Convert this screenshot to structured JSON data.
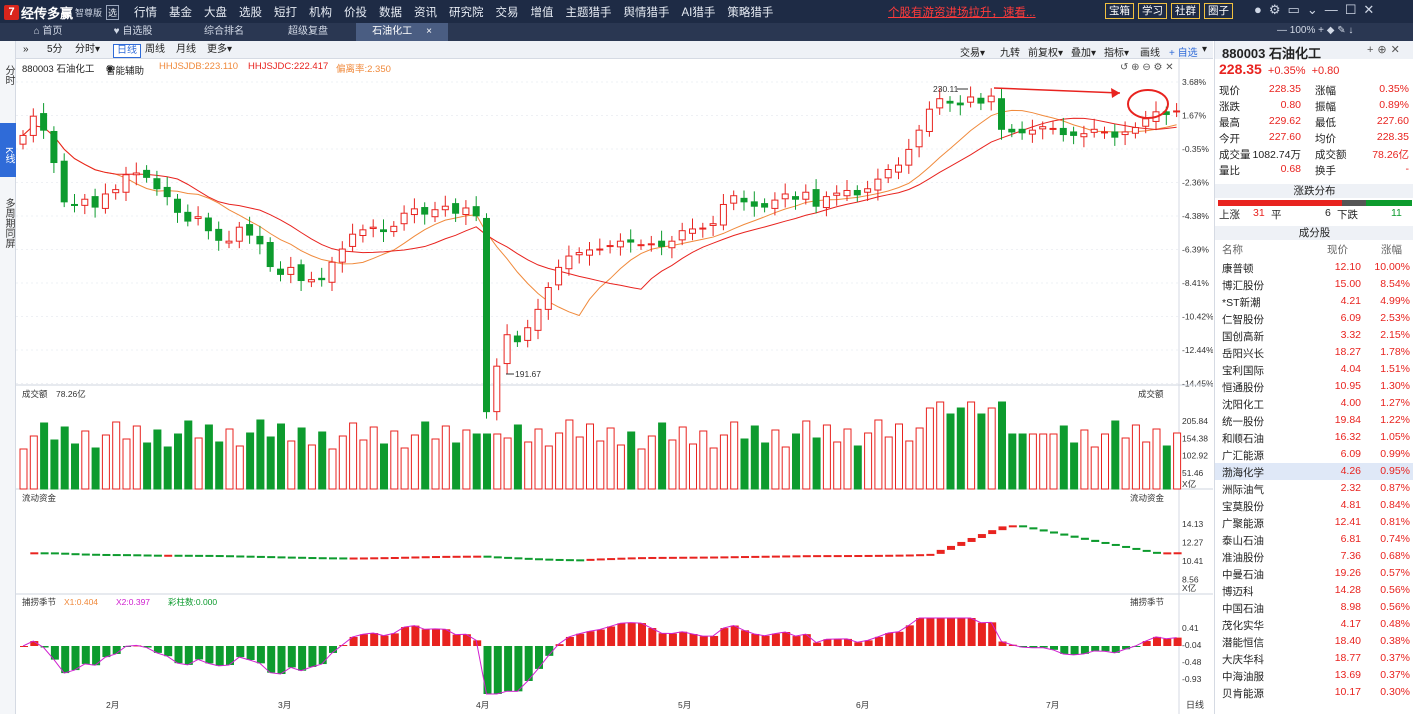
{
  "app": {
    "logo_glyph": "7",
    "name": "经传多赢",
    "edition": "智尊版",
    "badge": "选"
  },
  "menu": [
    "行情",
    "基金",
    "大盘",
    "选股",
    "短打",
    "机构",
    "价投",
    "数据",
    "资讯",
    "研究院",
    "交易",
    "增值",
    "主题猎手",
    "舆情猎手",
    "AI猎手",
    "策略猎手"
  ],
  "marquee": "个股有游资进场拉升，速看...",
  "top_buttons": [
    "宝箱",
    "学习",
    "社群",
    "圈子"
  ],
  "window_icons": [
    "user-icon",
    "gear-icon",
    "window-icon",
    "chevron-down-icon",
    "minimize-icon",
    "maximize-icon",
    "close-icon"
  ],
  "tabs": [
    {
      "label": "首页",
      "icon": "home"
    },
    {
      "label": "自选股",
      "icon": "heart"
    },
    {
      "label": "综合排名"
    },
    {
      "label": "超级复盘"
    },
    {
      "label": "石油化工",
      "active": true,
      "close": "×"
    }
  ],
  "tabbar_right": "— 100% + ◆ ✎ ↓",
  "left_rail": [
    "分时",
    "K线",
    "多周期同屏"
  ],
  "chart_toolbar": {
    "nav": "»",
    "periods": [
      "5分",
      "分时▾",
      "日线",
      "周线",
      "月线",
      "更多▾"
    ],
    "active": "日线",
    "right": [
      "交易▾",
      "九转",
      "前复权▾",
      "叠加▾",
      "指标▾",
      "画线"
    ],
    "add": "+ 自选",
    "more": "▾"
  },
  "info": {
    "code": "880003 石油化工",
    "assist": "智能辅助",
    "hhjsdb": "HHJSJDB:223.110",
    "hhjsdc": "HHJSJDC:222.417",
    "disp": "偏离率:2.350"
  },
  "panes": {
    "vol_title": "成交额",
    "vol_value": "78.26亿",
    "vol_right": "成交额",
    "fund_title": "流动资金",
    "fund_right": "流动资金",
    "ind_title": "捕捞季节",
    "ind_x1": "X1:0.404",
    "ind_x2": "X2:0.397",
    "ind_bar": "彩柱数:0.000",
    "ind_right": "捕捞季节",
    "unit": "X亿"
  },
  "price_axis": [
    "3.68%",
    "1.67%",
    "-0.35%",
    "-2.36%",
    "-4.38%",
    "-6.39%",
    "-8.41%",
    "-10.42%",
    "-12.44%",
    "-14.45%"
  ],
  "vol_axis": [
    "205.84",
    "154.38",
    "102.92",
    "51.46"
  ],
  "fund_axis": [
    "14.13",
    "12.27",
    "10.41",
    "8.56"
  ],
  "ind_axis": [
    "0.41",
    "-0.04",
    "-0.48",
    "-0.93"
  ],
  "months": [
    "2月",
    "3月",
    "4月",
    "5月",
    "6月",
    "7月"
  ],
  "period_label": "日线",
  "annot": {
    "high": "230.11",
    "low": "191.67"
  },
  "quote": {
    "code": "880003",
    "name": "石油化工",
    "price": "228.35",
    "chg_pct": "+0.35%",
    "chg": "+0.80",
    "rows": [
      [
        "现价",
        "228.35",
        "涨幅",
        "0.35%"
      ],
      [
        "涨跌",
        "0.80",
        "振幅",
        "0.89%"
      ],
      [
        "最高",
        "229.62",
        "最低",
        "227.60"
      ],
      [
        "今开",
        "227.60",
        "均价",
        "228.35"
      ],
      [
        "成交量",
        "1082.74万",
        "成交额",
        "78.26亿"
      ],
      [
        "量比",
        "0.68",
        "换手",
        "-"
      ]
    ]
  },
  "breadth": {
    "title": "涨跌分布",
    "up_label": "上涨",
    "up": "31",
    "flat_label": "平",
    "flat": "6",
    "down_label": "下跌",
    "down": "11"
  },
  "constituents": {
    "title": "成分股",
    "headers": [
      "名称",
      "现价",
      "涨幅"
    ],
    "rows": [
      [
        "康普顿",
        "12.10",
        "10.00%"
      ],
      [
        "博汇股份",
        "15.00",
        "8.54%"
      ],
      [
        "*ST新潮",
        "4.21",
        "4.99%"
      ],
      [
        "仁智股份",
        "6.09",
        "2.53%"
      ],
      [
        "国创高新",
        "3.32",
        "2.15%"
      ],
      [
        "岳阳兴长",
        "18.27",
        "1.78%"
      ],
      [
        "宝利国际",
        "4.04",
        "1.51%"
      ],
      [
        "恒通股份",
        "10.95",
        "1.30%"
      ],
      [
        "沈阳化工",
        "4.00",
        "1.27%"
      ],
      [
        "统一股份",
        "19.84",
        "1.22%"
      ],
      [
        "和顺石油",
        "16.32",
        "1.05%"
      ],
      [
        "广汇能源",
        "6.09",
        "0.99%"
      ],
      [
        "渤海化学",
        "4.26",
        "0.95%"
      ],
      [
        "洲际油气",
        "2.32",
        "0.87%"
      ],
      [
        "宝莫股份",
        "4.81",
        "0.84%"
      ],
      [
        "广聚能源",
        "12.41",
        "0.81%"
      ],
      [
        "泰山石油",
        "6.81",
        "0.74%"
      ],
      [
        "准油股份",
        "7.36",
        "0.68%"
      ],
      [
        "中曼石油",
        "19.26",
        "0.57%"
      ],
      [
        "博迈科",
        "14.28",
        "0.56%"
      ],
      [
        "中国石油",
        "8.98",
        "0.56%"
      ],
      [
        "茂化实华",
        "4.17",
        "0.48%"
      ],
      [
        "潜能恒信",
        "18.40",
        "0.38%"
      ],
      [
        "大庆华科",
        "18.77",
        "0.37%"
      ],
      [
        "中海油服",
        "13.69",
        "0.37%"
      ],
      [
        "贝肯能源",
        "10.17",
        "0.30%"
      ]
    ]
  },
  "colors": {
    "up": "#e8231f",
    "down": "#0d9b2e",
    "ma1": "#f08a3c",
    "ma2": "#e8231f",
    "panel": "#1e2b45"
  },
  "chart_data": {
    "type": "candlestick",
    "closes": [
      225.6,
      227.8,
      226.2,
      222.5,
      218.0,
      217.6,
      218.3,
      217.4,
      218.9,
      219.4,
      221.1,
      221.3,
      220.8,
      219.5,
      218.6,
      216.8,
      215.8,
      216.3,
      214.7,
      213.6,
      213.5,
      215.1,
      214.2,
      213.2,
      210.6,
      209.7,
      210.5,
      209.0,
      209.1,
      209.1,
      211.1,
      212.6,
      214.3,
      214.8,
      215.1,
      214.6,
      215.2,
      216.7,
      217.2,
      216.6,
      217.1,
      217.5,
      216.7,
      217.3,
      216.4,
      194.0,
      199.2,
      202.8,
      202.0,
      203.6,
      205.7,
      208.2,
      210.5,
      211.8,
      212.2,
      212.5,
      212.6,
      213.0,
      213.5,
      213.4,
      213.1,
      213.2,
      212.9,
      213.5,
      214.7,
      214.9,
      215.0,
      215.5,
      217.7,
      218.7,
      218.0,
      217.5,
      217.4,
      218.2,
      218.9,
      218.3,
      219.1,
      217.5,
      218.6,
      219.0,
      219.3,
      218.8,
      219.5,
      220.6,
      221.7,
      222.2,
      224.0,
      226.2,
      228.6,
      229.8,
      229.3,
      229.1,
      230.0,
      229.3,
      230.1,
      226.3,
      226.0,
      225.9,
      226.2,
      226.6,
      226.4,
      225.7,
      225.6,
      225.8,
      226.3,
      226.0,
      225.4,
      226.0,
      226.5,
      227.5,
      228.3,
      228.0,
      228.4
    ],
    "high": 230.11,
    "low": 191.67,
    "moving_averages": [
      "HHJSJDB",
      "HHJSJDC"
    ]
  }
}
